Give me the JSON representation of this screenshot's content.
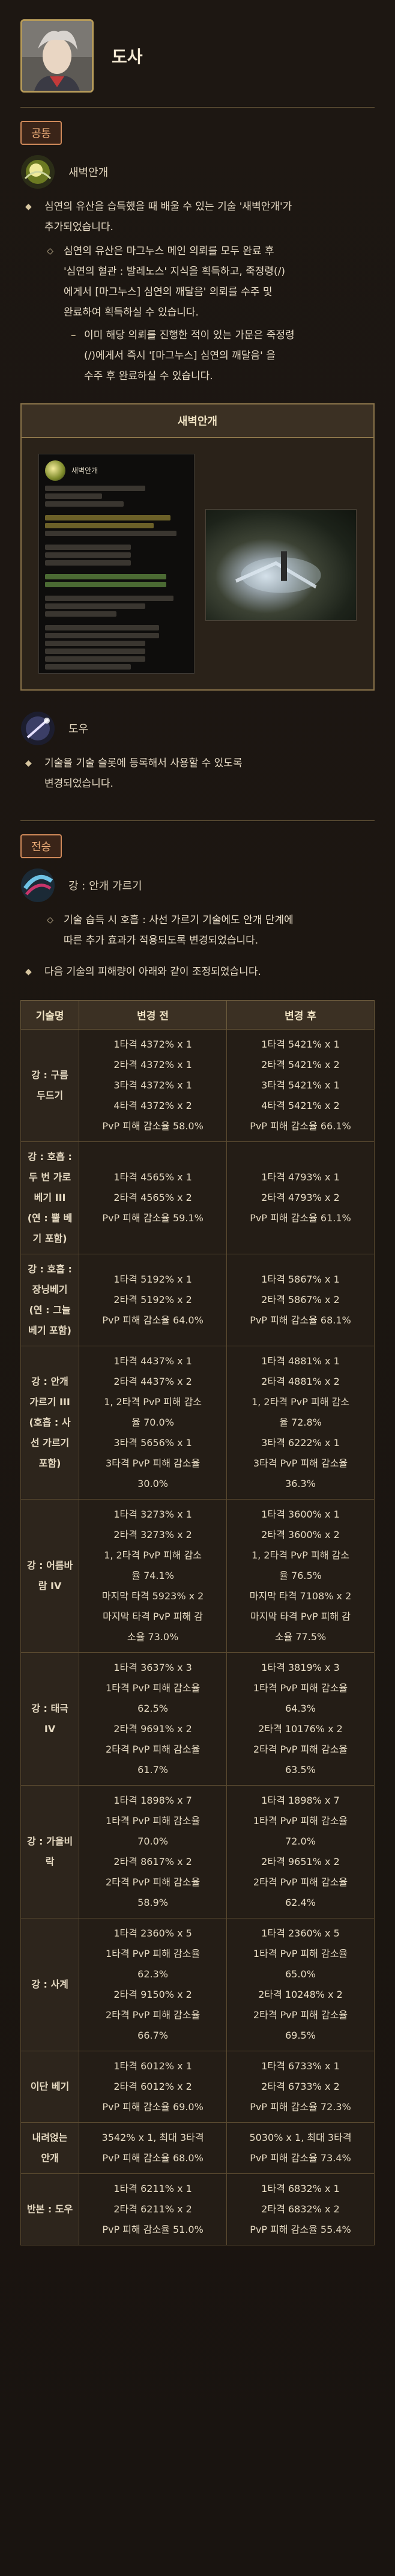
{
  "header": {
    "class_name": "도사"
  },
  "common": {
    "tag": "공통",
    "skill_name": "새벽안개",
    "bullets": {
      "b1": "심연의 유산을 습득했을 때 배울 수 있는 기술 '새벽안개'가\n추가되었습니다.",
      "b2": "심연의 유산은 마그누스 메인 의뢰를 모두 완료 후\n'심연의 혈관 : 발레노스' 지식을 획득하고, 죽정령(/)\n에게서 [마그누스] 심연의 깨달음' 의뢰를 수주 및\n완료하여 획득하실 수 있습니다.",
      "b3": "이미 해당 의뢰를 진행한 적이 있는 가문은 죽정령\n(/)에게서 즉시 '[마그누스] 심연의 깨달음' 을\n수주 후 완료하실 수 있습니다."
    },
    "preview_title": "새벽안개",
    "tooltip_name": "새벽안개"
  },
  "dosa": {
    "skill_name": "도우",
    "bullet": "기술을 기술 슬롯에 등록해서 사용할 수 있도록\n변경되었습니다."
  },
  "jeonseung": {
    "tag": "전승",
    "skill_name": "강 : 안개 가르기",
    "b2": "기술 습득 시 호흡 : 사선 가르기 기술에도 안개 단계에\n따른 추가 효과가 적용되도록 변경되었습니다.",
    "b1": "다음 기술의 피해량이 아래와 같이 조정되었습니다."
  },
  "table": {
    "headers": [
      "기술명",
      "변경 전",
      "변경 후"
    ],
    "rows": [
      {
        "name": "강 : 구름\n두드기",
        "before": "1타격 4372% x 1\n2타격 4372% x 1\n3타격 4372% x 1\n4타격 4372% x 2\nPvP 피해 감소율 58.0%",
        "after": "1타격 5421% x 1\n2타격 5421% x 2\n3타격 5421% x 1\n4타격 5421% x 2\nPvP 피해 감소율 66.1%"
      },
      {
        "name": "강 : 호흡 :\n두 번 가로\n베기 III\n(연 : 뿔 베\n기 포함)",
        "before": "1타격 4565% x 1\n2타격 4565% x 2\nPvP 피해 감소율 59.1%",
        "after": "1타격 4793% x 1\n2타격 4793% x 2\nPvP 피해 감소율 61.1%"
      },
      {
        "name": "강 : 호흡 :\n장닝베기\n(연 : 그늘\n베기 포함)",
        "before": "1타격 5192% x 1\n2타격 5192% x 2\nPvP 피해 감소율 64.0%",
        "after": "1타격 5867% x 1\n2타격 5867% x 2\nPvP 피해 감소율 68.1%"
      },
      {
        "name": "강 : 안개\n가르기 III\n(호흡 : 사\n선 가르기\n포함)",
        "before": "1타격 4437% x 1\n2타격 4437% x 2\n1, 2타격 PvP 피해 감소\n율 70.0%\n3타격 5656% x 1\n3타격 PvP 피해 감소율\n30.0%",
        "after": "1타격 4881% x 1\n2타격 4881% x 2\n1, 2타격 PvP 피해 감소\n율 72.8%\n3타격 6222% x 1\n3타격 PvP 피해 감소율\n36.3%"
      },
      {
        "name": "강 : 어름바\n람 IV",
        "before": "1타격 3273% x 1\n2타격 3273% x 2\n1, 2타격 PvP 피해 감소\n율 74.1%\n마지막 타격 5923% x 2\n마지막 타격 PvP 피해 감\n소율 73.0%",
        "after": "1타격 3600% x 1\n2타격 3600% x 2\n1, 2타격 PvP 피해 감소\n율 76.5%\n마지막 타격 7108% x 2\n마지막 타격 PvP 피해 감\n소율 77.5%"
      },
      {
        "name": "강 : 태극\nIV",
        "before": "1타격 3637% x 3\n1타격 PvP 피해 감소율\n62.5%\n2타격 9691% x 2\n2타격 PvP 피해 감소율\n61.7%",
        "after": "1타격 3819% x 3\n1타격 PvP 피해 감소율\n64.3%\n2타격 10176% x 2\n2타격 PvP 피해 감소율\n63.5%"
      },
      {
        "name": "강 : 가을비\n락",
        "before": "1타격 1898% x 7\n1타격 PvP 피해 감소율\n70.0%\n2타격 8617% x 2\n2타격 PvP 피해 감소율\n58.9%",
        "after": "1타격 1898% x 7\n1타격 PvP 피해 감소율\n72.0%\n2타격 9651% x 2\n2타격 PvP 피해 감소율\n62.4%"
      },
      {
        "name": "강 : 사계",
        "before": "1타격 2360% x 5\n1타격 PvP 피해 감소율\n62.3%\n2타격 9150% x 2\n2타격 PvP 피해 감소율\n66.7%",
        "after": "1타격 2360% x 5\n1타격 PvP 피해 감소율\n65.0%\n2타격 10248% x 2\n2타격 PvP 피해 감소율\n69.5%"
      },
      {
        "name": "이단 베기",
        "before": "1타격 6012% x 1\n2타격 6012% x 2\nPvP 피해 감소율 69.0%",
        "after": "1타격 6733% x 1\n2타격 6733% x 2\nPvP 피해 감소율 72.3%"
      },
      {
        "name": "내려얹는\n안개",
        "before": "3542% x 1, 최대 3타격\nPvP 피해 감소율 68.0%",
        "after": "5030% x 1, 최대 3타격\nPvP 피해 감소율 73.4%"
      },
      {
        "name": "반본 : 도우",
        "before": "1타격 6211% x 1\n2타격 6211% x 2\nPvP 피해 감소율 51.0%",
        "after": "1타격 6832% x 1\n2타격 6832% x 2\nPvP 피해 감소율 55.4%"
      }
    ]
  }
}
